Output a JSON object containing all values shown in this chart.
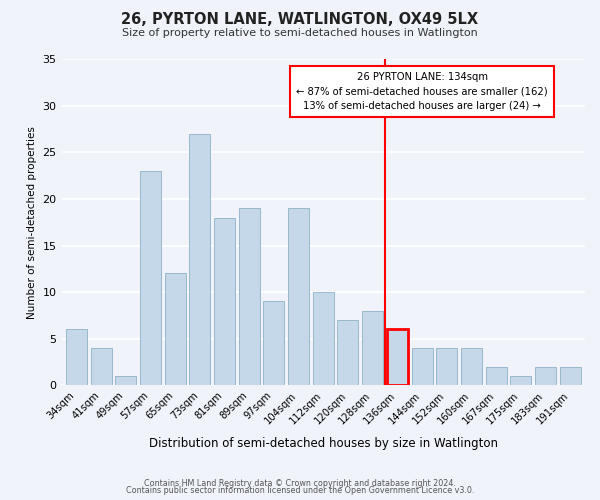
{
  "title": "26, PYRTON LANE, WATLINGTON, OX49 5LX",
  "subtitle": "Size of property relative to semi-detached houses in Watlington",
  "xlabel": "Distribution of semi-detached houses by size in Watlington",
  "ylabel": "Number of semi-detached properties",
  "categories": [
    "34sqm",
    "41sqm",
    "49sqm",
    "57sqm",
    "65sqm",
    "73sqm",
    "81sqm",
    "89sqm",
    "97sqm",
    "104sqm",
    "112sqm",
    "120sqm",
    "128sqm",
    "136sqm",
    "144sqm",
    "152sqm",
    "160sqm",
    "167sqm",
    "175sqm",
    "183sqm",
    "191sqm"
  ],
  "values": [
    6,
    4,
    1,
    23,
    12,
    27,
    18,
    19,
    9,
    19,
    10,
    7,
    8,
    6,
    4,
    4,
    4,
    2,
    1,
    2,
    2
  ],
  "bar_color": "#c5d8ea",
  "bar_edgecolor": "#9ab8cc",
  "highlight_index": 13,
  "highlight_color": "#ff0000",
  "property_line_label": "26 PYRTON LANE: 134sqm",
  "annotation_line1": "← 87% of semi-detached houses are smaller (162)",
  "annotation_line2": "13% of semi-detached houses are larger (24) →",
  "ylim": [
    0,
    35
  ],
  "yticks": [
    0,
    5,
    10,
    15,
    20,
    25,
    30,
    35
  ],
  "background_color": "#f0f4fa",
  "footer_line1": "Contains HM Land Registry data © Crown copyright and database right 2024.",
  "footer_line2": "Contains public sector information licensed under the Open Government Licence v3.0."
}
